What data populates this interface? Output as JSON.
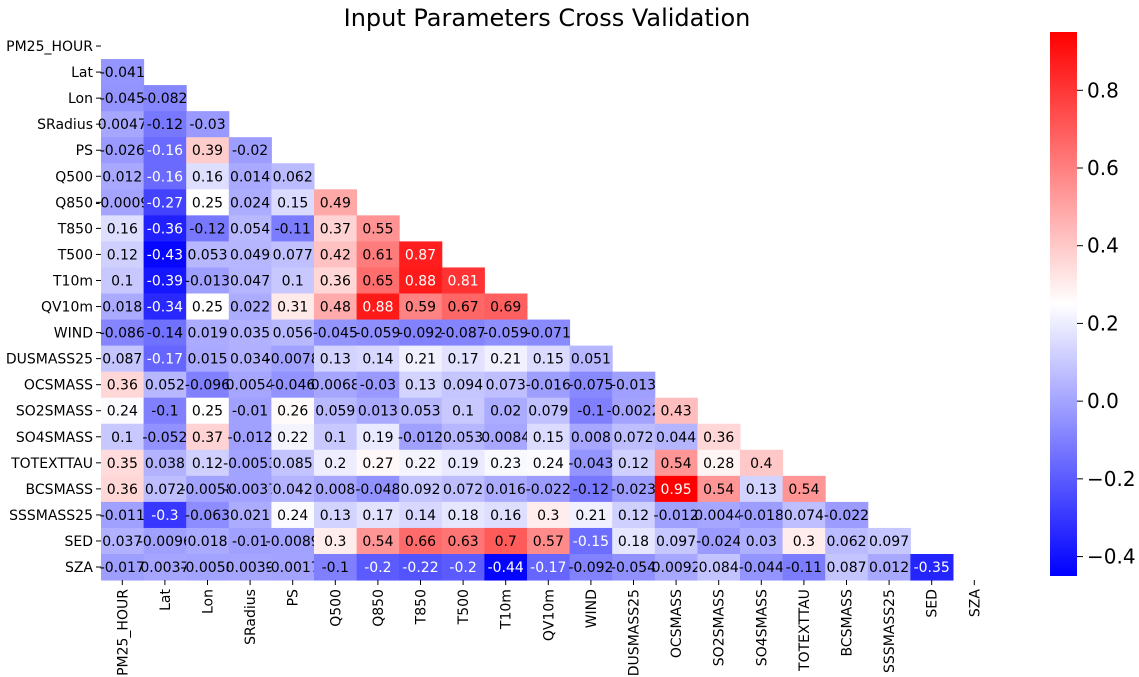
{
  "chart_data": {
    "type": "heatmap",
    "title": "Input Parameters Cross Validation",
    "variables": [
      "PM25_HOUR",
      "Lat",
      "Lon",
      "SRadius",
      "PS",
      "Q500",
      "Q850",
      "T850",
      "T500",
      "T10m",
      "QV10m",
      "WIND",
      "DUSMASS25",
      "OCSMASS",
      "SO2SMASS",
      "SO4SMASS",
      "TOTEXTTAU",
      "BCSMASS",
      "SSSMASS25",
      "SED",
      "SZA"
    ],
    "matrix_lower": [
      [],
      [
        "-0.041"
      ],
      [
        "-0.045",
        "-0.082"
      ],
      [
        "0.0047",
        "-0.12",
        "-0.03"
      ],
      [
        "-0.026",
        "-0.16",
        "0.39",
        "-0.02"
      ],
      [
        "0.012",
        "-0.16",
        "0.16",
        "0.014",
        "0.062"
      ],
      [
        "-0.0009",
        "-0.27",
        "0.25",
        "0.024",
        "0.15",
        "0.49"
      ],
      [
        "0.16",
        "-0.36",
        "-0.12",
        "0.054",
        "-0.11",
        "0.37",
        "0.55"
      ],
      [
        "0.12",
        "-0.43",
        "0.053",
        "0.049",
        "0.077",
        "0.42",
        "0.61",
        "0.87"
      ],
      [
        "0.1",
        "-0.39",
        "-0.013",
        "0.047",
        "0.1",
        "0.36",
        "0.65",
        "0.88",
        "0.81"
      ],
      [
        "0.018",
        "-0.34",
        "0.25",
        "0.022",
        "0.31",
        "0.48",
        "0.88",
        "0.59",
        "0.67",
        "0.69"
      ],
      [
        "-0.086",
        "-0.14",
        "0.019",
        "0.035",
        "0.056",
        "-0.045",
        "-0.059",
        "-0.092",
        "-0.087",
        "-0.059",
        "-0.071"
      ],
      [
        "0.087",
        "-0.17",
        "0.015",
        "0.034",
        "-0.0078",
        "0.13",
        "0.14",
        "0.21",
        "0.17",
        "0.21",
        "0.15",
        "0.051"
      ],
      [
        "0.36",
        "0.052",
        "-0.096",
        "0.0054",
        "-0.046",
        "0.0068",
        "-0.03",
        "0.13",
        "0.094",
        "0.073",
        "-0.016",
        "-0.075",
        "-0.013"
      ],
      [
        "0.24",
        "-0.1",
        "0.25",
        "-0.01",
        "0.26",
        "0.059",
        "0.013",
        "0.053",
        "0.1",
        "0.02",
        "0.079",
        "-0.1",
        "-0.0022",
        "0.43"
      ],
      [
        "0.1",
        "-0.052",
        "0.37",
        "-0.012",
        "0.22",
        "0.1",
        "0.19",
        "-0.012",
        "0.053",
        "0.0084",
        "0.15",
        "0.008",
        "0.072",
        "0.044",
        "0.36"
      ],
      [
        "0.35",
        "0.038",
        "0.12",
        "-0.0053",
        "0.085",
        "0.2",
        "0.27",
        "0.22",
        "0.19",
        "0.23",
        "0.24",
        "-0.043",
        "0.12",
        "0.54",
        "0.28",
        "0.4"
      ],
      [
        "0.36",
        "0.072",
        "-0.0058",
        "-0.0037",
        "0.042",
        "0.008",
        "-0.048",
        "0.092",
        "0.072",
        "0.016",
        "-0.022",
        "-0.12",
        "-0.023",
        "0.95",
        "0.54",
        "0.13",
        "0.54"
      ],
      [
        "-0.011",
        "-0.3",
        "-0.063",
        "0.021",
        "0.24",
        "0.13",
        "0.17",
        "0.14",
        "0.18",
        "0.16",
        "0.3",
        "0.21",
        "0.12",
        "-0.012",
        "0.0044",
        "-0.018",
        "0.074",
        "-0.022"
      ],
      [
        "0.037",
        "-0.0096",
        "0.018",
        "-0.01",
        "-0.0089",
        "0.3",
        "0.54",
        "0.66",
        "0.63",
        "0.7",
        "0.57",
        "-0.15",
        "0.18",
        "0.097",
        "-0.024",
        "0.03",
        "0.3",
        "0.062",
        "0.097"
      ],
      [
        "-0.017",
        "0.0037",
        "-0.0058",
        "0.0039",
        "-0.0017",
        "-0.1",
        "-0.2",
        "-0.22",
        "-0.2",
        "-0.44",
        "-0.17",
        "-0.092",
        "-0.054",
        "0.0092",
        "0.084",
        "-0.044",
        "-0.11",
        "0.087",
        "0.012",
        "-0.35"
      ]
    ],
    "colorbar": {
      "colormap": "bwr",
      "vmin": -0.45,
      "vmax": 0.95,
      "ticks": [
        -0.4,
        -0.2,
        0.0,
        0.2,
        0.4,
        0.6,
        0.8
      ],
      "tick_labels": [
        "−0.4",
        "−0.2",
        "0.0",
        "0.2",
        "0.4",
        "0.6",
        "0.8"
      ]
    },
    "colors": {
      "low": "#0000ff",
      "mid": "#ffffff",
      "high": "#ff0000"
    }
  }
}
